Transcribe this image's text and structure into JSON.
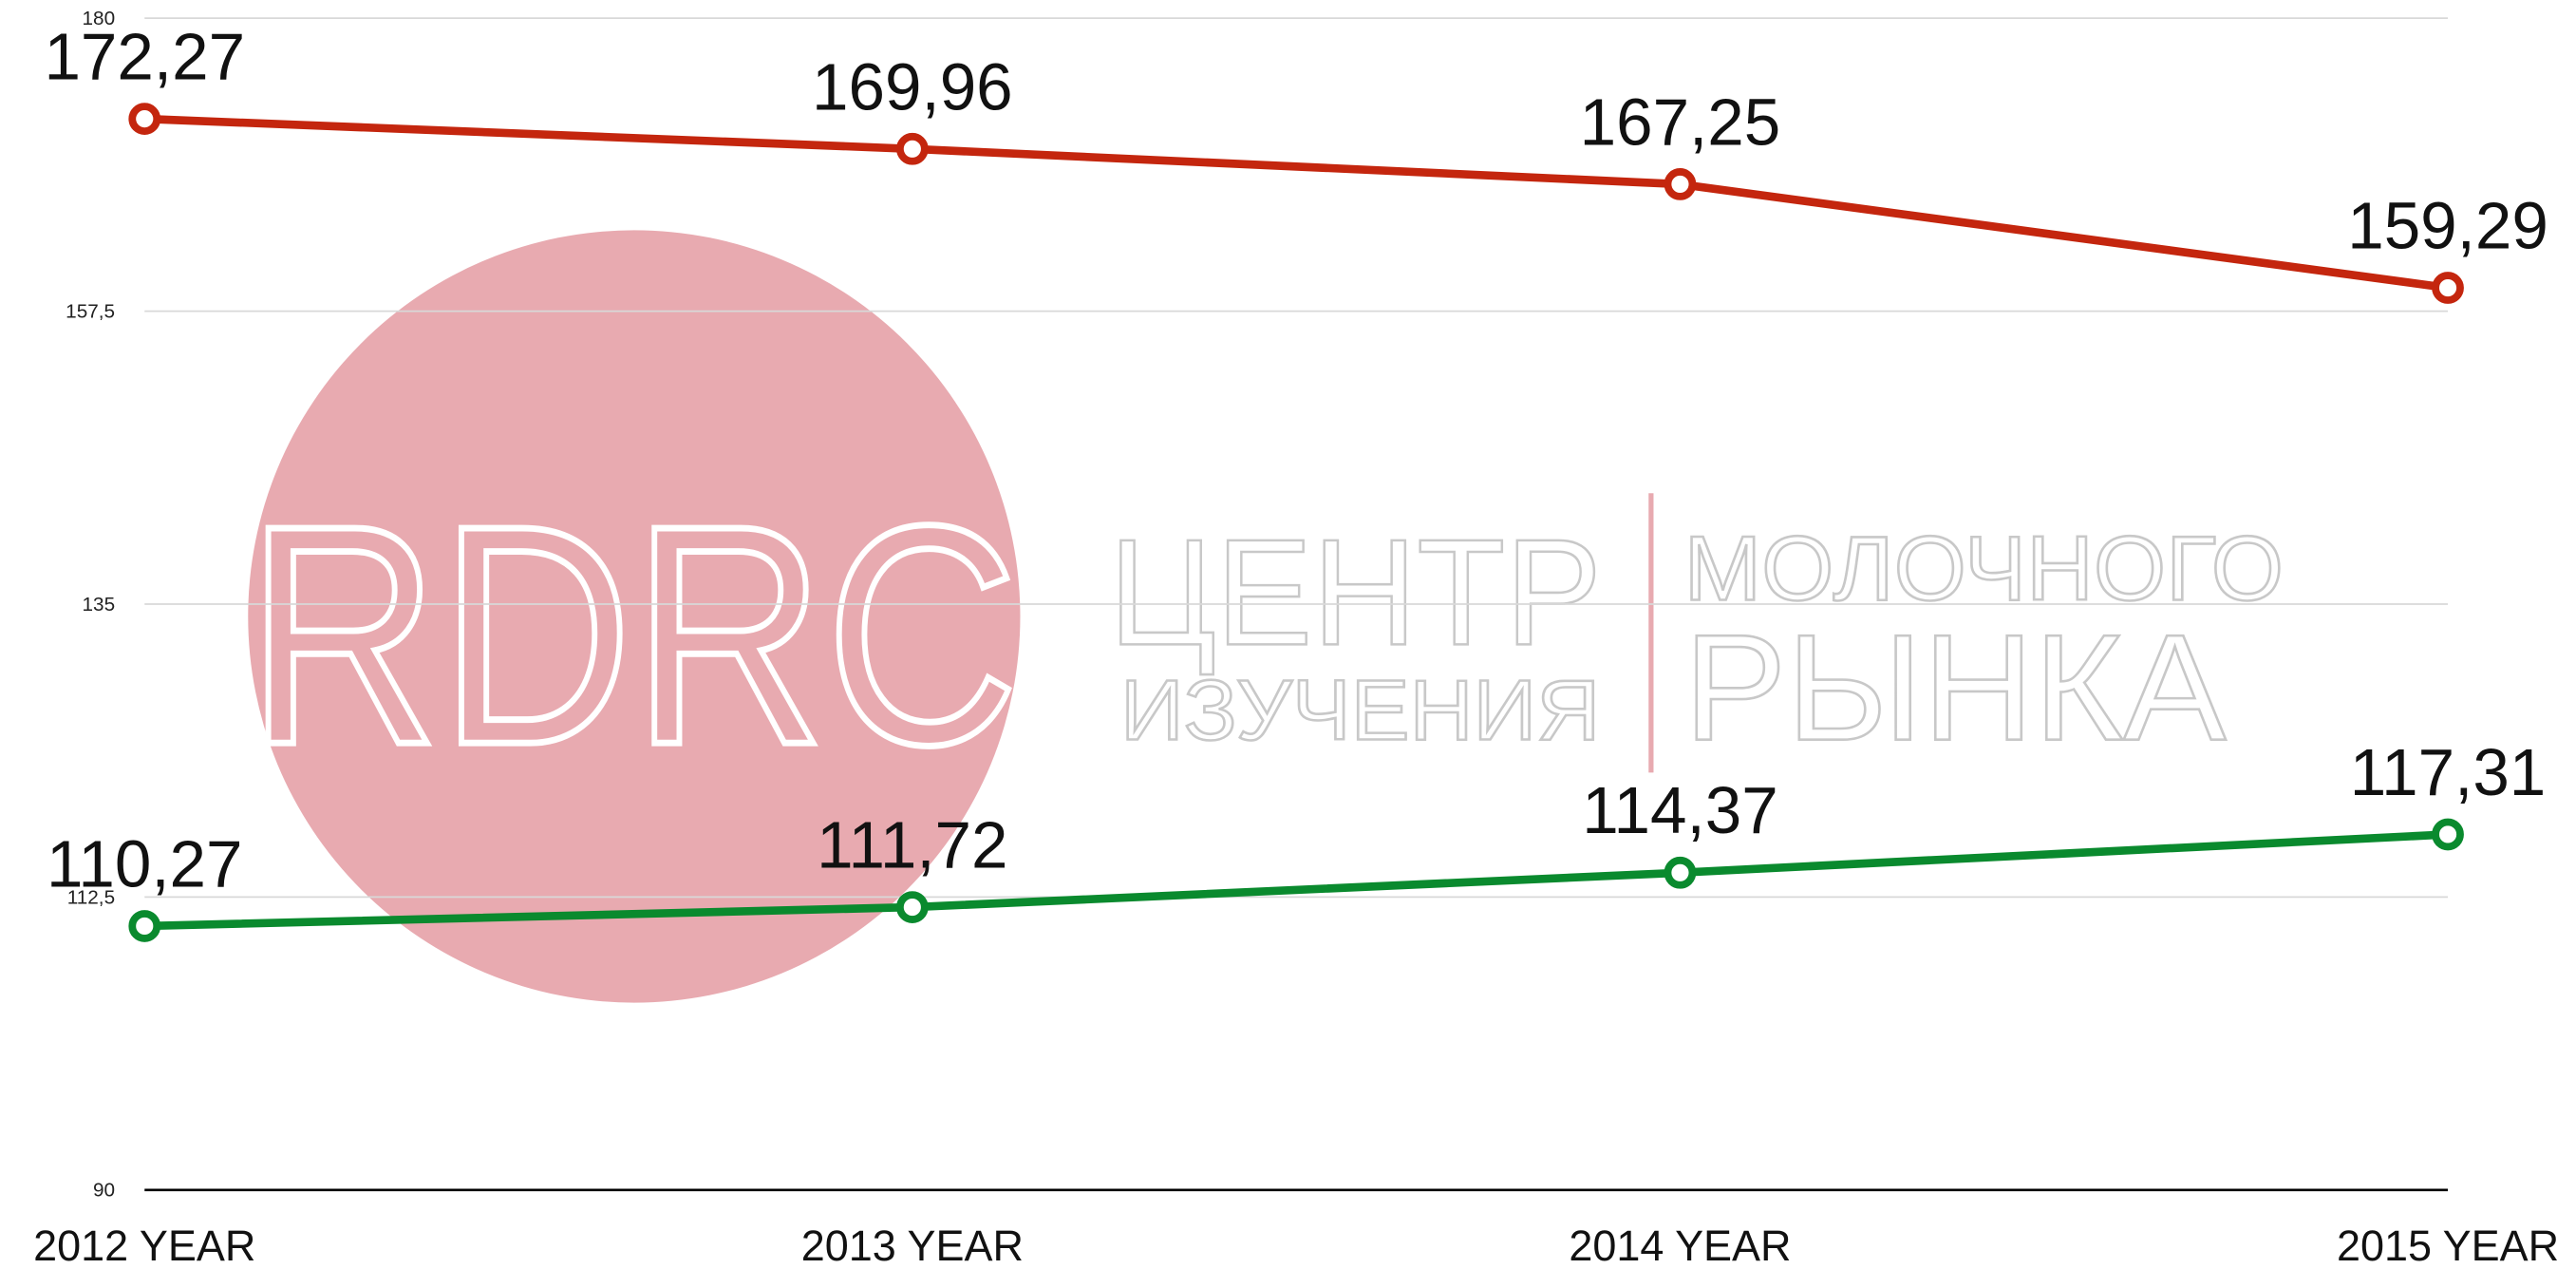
{
  "chart_data": {
    "type": "line",
    "categories": [
      "2012 YEAR",
      "2013 YEAR",
      "2014 YEAR",
      "2015 YEAR"
    ],
    "series": [
      {
        "color": "#c4260e",
        "values": [
          172.27,
          169.96,
          167.25,
          159.29
        ],
        "value_labels": [
          "172,27",
          "169,96",
          "167,25",
          "159,29"
        ]
      },
      {
        "color": "#0a8a2e",
        "values": [
          110.27,
          111.72,
          114.37,
          117.31
        ],
        "value_labels": [
          "110,27",
          "111,72",
          "114,37",
          "117,31"
        ]
      }
    ],
    "ylim": [
      90,
      180
    ],
    "yticks": [
      90,
      {
        "value": 112.5,
        "label": "112,5"
      },
      135,
      {
        "value": 157.5,
        "label": "157,5"
      },
      180
    ],
    "grid": true
  },
  "watermark": {
    "logo": "RDRC",
    "line1_left": "ЦЕНТР",
    "line2_left": "ИЗУЧЕНИЯ",
    "line1_right": "МОЛОЧНОГО",
    "line2_right": "РЫНКА"
  }
}
